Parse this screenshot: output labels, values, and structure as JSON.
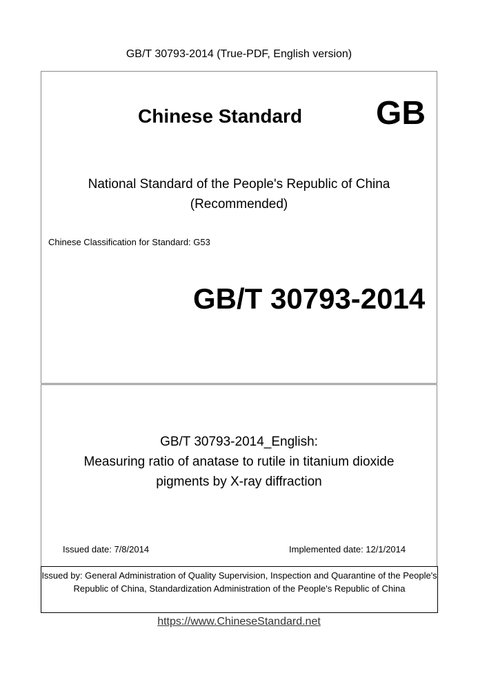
{
  "header": {
    "title": "GB/T 30793-2014 (True-PDF, English version)"
  },
  "cover": {
    "heading": "Chinese Standard",
    "logo": "GB",
    "national_line1": "National Standard of the People's Republic of China",
    "national_line2": "(Recommended)",
    "classification": "Chinese Classification for Standard: G53",
    "code": "GB/T 30793-2014"
  },
  "details": {
    "title_line1": "GB/T 30793-2014_English:",
    "title_line2": "Measuring ratio of anatase to rutile in titanium dioxide",
    "title_line3": "pigments by X-ray diffraction",
    "issued_date": "Issued date: 7/8/2014",
    "implemented_date": "Implemented date: 12/1/2014"
  },
  "issuer": {
    "text": "Issued by: General Administration of Quality Supervision, Inspection and Quarantine of the People's Republic of China, Standardization Administration of the People's Republic of China"
  },
  "footer": {
    "url": "https://www.ChineseStandard.net"
  }
}
